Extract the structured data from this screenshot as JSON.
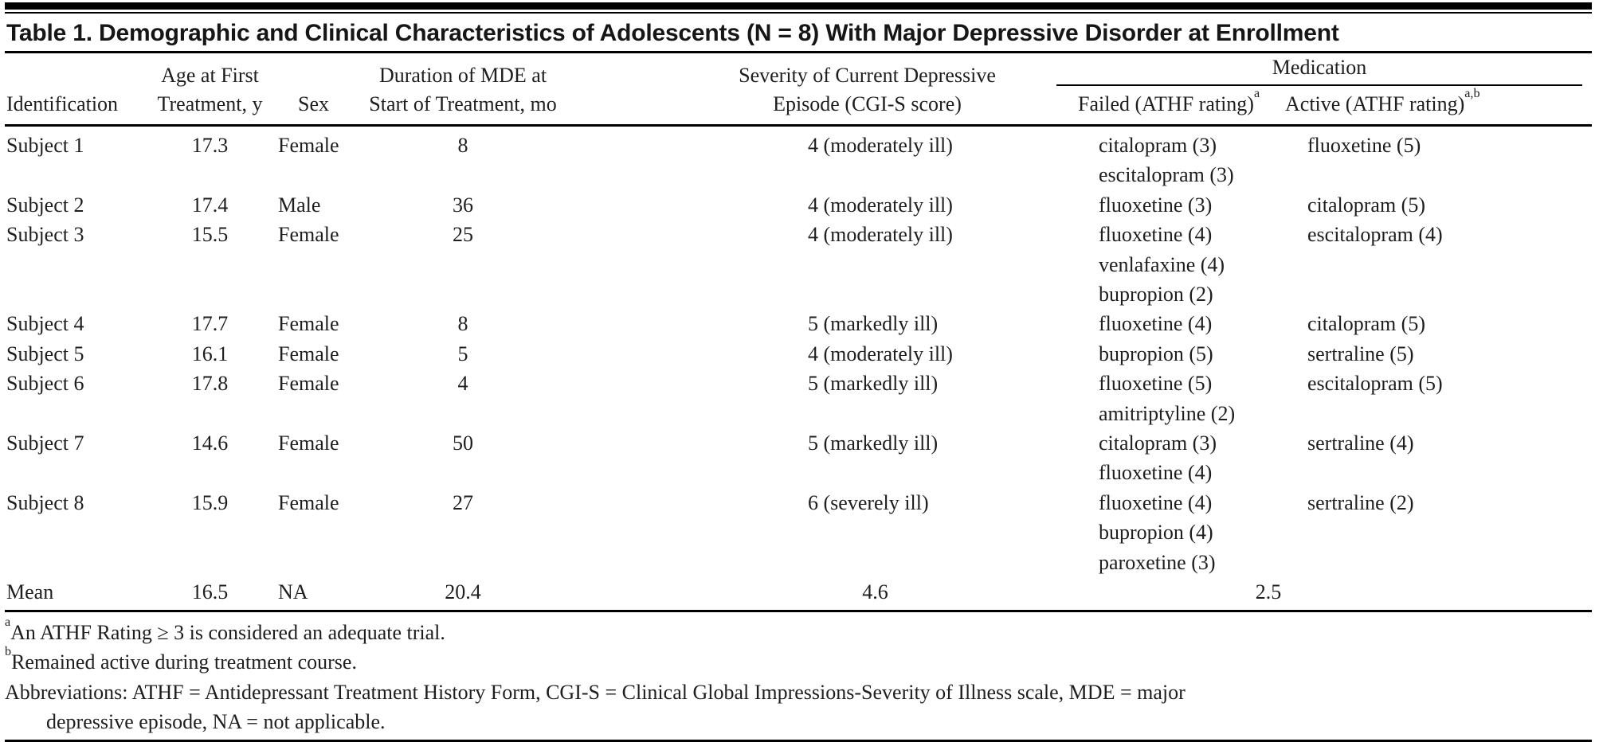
{
  "title": "Table 1. Demographic and Clinical Characteristics of Adolescents (N = 8) With Major Depressive Disorder at Enrollment",
  "columns": {
    "identification": "Identification",
    "age_line1": "Age at First",
    "age_line2": "Treatment, y",
    "sex": "Sex",
    "duration_line1": "Duration of MDE at",
    "duration_line2": "Start of Treatment, mo",
    "severity_line1": "Severity of Current Depressive",
    "severity_line2": "Episode (CGI-S score)",
    "medication_group": "Medication",
    "failed": "Failed (ATHF rating)",
    "failed_sup": "a",
    "active": "Active (ATHF rating)",
    "active_sup": "a,b"
  },
  "rows": [
    {
      "id": "Subject 1",
      "age": "17.3",
      "sex": "Female",
      "duration": "8",
      "severity": "4 (moderately ill)",
      "failed": [
        "citalopram (3)",
        "escitalopram (3)"
      ],
      "active": [
        "fluoxetine (5)"
      ]
    },
    {
      "id": "Subject 2",
      "age": "17.4",
      "sex": "Male",
      "duration": "36",
      "severity": "4 (moderately ill)",
      "failed": [
        "fluoxetine (3)"
      ],
      "active": [
        "citalopram (5)"
      ]
    },
    {
      "id": "Subject 3",
      "age": "15.5",
      "sex": "Female",
      "duration": "25",
      "severity": "4 (moderately ill)",
      "failed": [
        "fluoxetine (4)",
        "venlafaxine (4)",
        "bupropion (2)"
      ],
      "active": [
        "escitalopram (4)"
      ]
    },
    {
      "id": "Subject 4",
      "age": "17.7",
      "sex": "Female",
      "duration": "8",
      "severity": "5 (markedly ill)",
      "failed": [
        "fluoxetine (4)"
      ],
      "active": [
        "citalopram (5)"
      ]
    },
    {
      "id": "Subject 5",
      "age": "16.1",
      "sex": "Female",
      "duration": "5",
      "severity": "4 (moderately ill)",
      "failed": [
        "bupropion (5)"
      ],
      "active": [
        "sertraline (5)"
      ]
    },
    {
      "id": "Subject 6",
      "age": "17.8",
      "sex": "Female",
      "duration": "4",
      "severity": "5 (markedly ill)",
      "failed": [
        "fluoxetine (5)",
        "amitriptyline (2)"
      ],
      "active": [
        "escitalopram (5)"
      ]
    },
    {
      "id": "Subject 7",
      "age": "14.6",
      "sex": "Female",
      "duration": "50",
      "severity": "5 (markedly ill)",
      "failed": [
        "citalopram (3)",
        "fluoxetine (4)"
      ],
      "active": [
        "sertraline (4)"
      ]
    },
    {
      "id": "Subject 8",
      "age": "15.9",
      "sex": "Female",
      "duration": "27",
      "severity": "6 (severely ill)",
      "failed": [
        "fluoxetine (4)",
        "bupropion (4)",
        "paroxetine (3)"
      ],
      "active": [
        "sertraline (2)"
      ]
    }
  ],
  "mean": {
    "id": "Mean",
    "age": "16.5",
    "sex": "NA",
    "duration": "20.4",
    "severity": "4.6",
    "medication": "2.5"
  },
  "footnotes": {
    "a_sup": "a",
    "a_text": "An ATHF Rating ≥ 3 is considered an adequate trial.",
    "b_sup": "b",
    "b_text": "Remained active during treatment course.",
    "abbr_line1": "Abbreviations: ATHF = Antidepressant Treatment History Form, CGI-S = Clinical Global Impressions-Severity of Illness scale, MDE = major",
    "abbr_line2": "depressive episode, NA = not applicable."
  }
}
